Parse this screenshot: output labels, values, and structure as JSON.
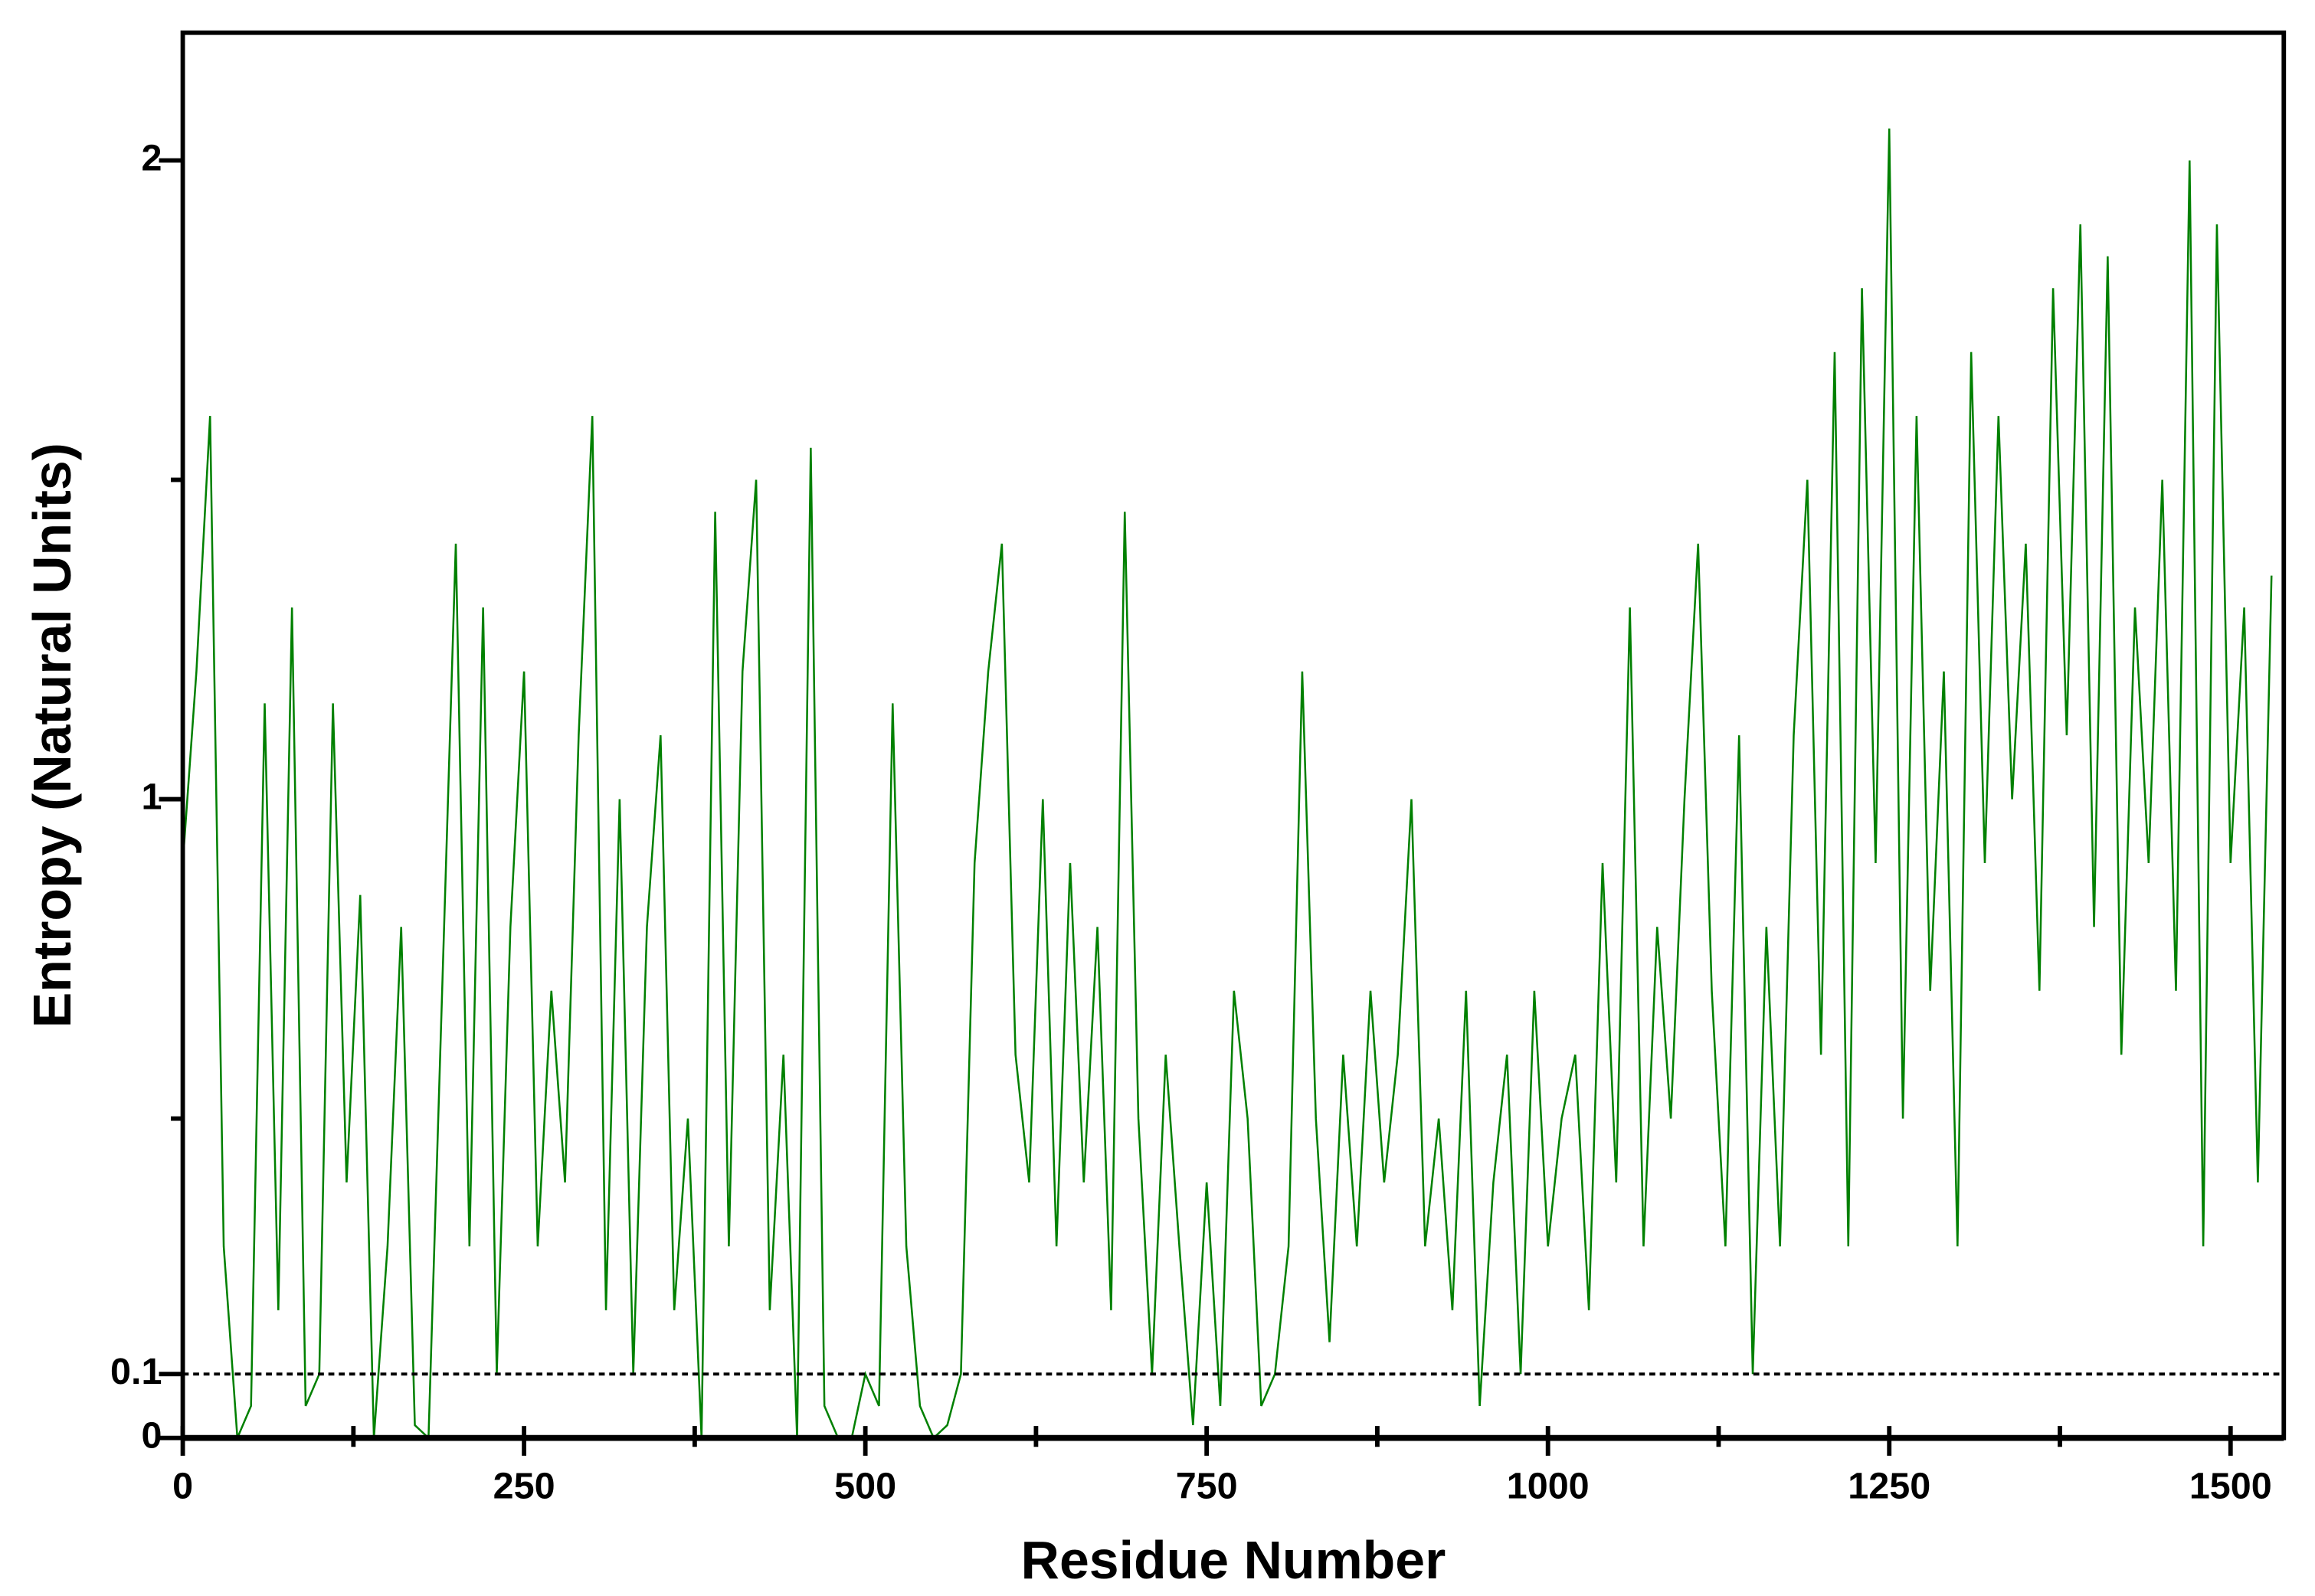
{
  "chart_data": {
    "type": "line",
    "xlabel": "Residue Number",
    "ylabel": "Entropy (Natural Units)",
    "xlim": [
      0,
      1539
    ],
    "ylim": [
      0,
      2.2
    ],
    "xticks": [
      0,
      250,
      500,
      750,
      1000,
      1250,
      1500
    ],
    "xminor_ticks": [
      125,
      375,
      625,
      875,
      1125,
      1375
    ],
    "yticks": [
      0,
      0.1,
      1,
      2
    ],
    "yminor_ticks": [
      0.5,
      1.5
    ],
    "threshold": 0.1,
    "grid": false,
    "x": [
      0,
      10,
      20,
      30,
      40,
      50,
      60,
      70,
      80,
      90,
      100,
      110,
      120,
      130,
      140,
      150,
      160,
      170,
      180,
      190,
      200,
      210,
      220,
      230,
      240,
      250,
      260,
      270,
      280,
      290,
      300,
      310,
      320,
      330,
      340,
      350,
      360,
      370,
      380,
      390,
      400,
      410,
      420,
      430,
      440,
      450,
      460,
      470,
      480,
      490,
      500,
      510,
      520,
      530,
      540,
      550,
      560,
      570,
      580,
      590,
      600,
      610,
      620,
      630,
      640,
      650,
      660,
      670,
      680,
      690,
      700,
      710,
      720,
      730,
      740,
      750,
      760,
      770,
      780,
      790,
      800,
      810,
      820,
      830,
      840,
      850,
      860,
      870,
      880,
      890,
      900,
      910,
      920,
      930,
      940,
      950,
      960,
      970,
      980,
      990,
      1000,
      1010,
      1020,
      1030,
      1040,
      1050,
      1060,
      1070,
      1080,
      1090,
      1100,
      1110,
      1120,
      1130,
      1140,
      1150,
      1160,
      1170,
      1180,
      1190,
      1200,
      1210,
      1220,
      1230,
      1240,
      1250,
      1260,
      1270,
      1280,
      1290,
      1300,
      1310,
      1320,
      1330,
      1340,
      1350,
      1360,
      1370,
      1380,
      1390,
      1400,
      1410,
      1420,
      1430,
      1440,
      1450,
      1460,
      1470,
      1480,
      1490,
      1500,
      1510,
      1520,
      1530
    ],
    "series": [
      {
        "name": "Entropy",
        "color": "#008000",
        "values": [
          0.9,
          1.2,
          1.6,
          0.3,
          0,
          0.05,
          1.15,
          0.2,
          1.3,
          0.05,
          0.1,
          1.15,
          0.4,
          0.85,
          0,
          0.3,
          0.8,
          0.02,
          0,
          0.7,
          1.4,
          0.3,
          1.3,
          0.1,
          0.8,
          1.2,
          0.3,
          0.7,
          0.4,
          1.1,
          1.6,
          0.2,
          1.0,
          0.1,
          0.8,
          1.1,
          0.2,
          0.5,
          0,
          1.45,
          0.3,
          1.2,
          1.5,
          0.2,
          0.6,
          0,
          1.55,
          0.05,
          0,
          0,
          0.1,
          0.05,
          1.15,
          0.3,
          0.05,
          0,
          0.02,
          0.1,
          0.9,
          1.2,
          1.4,
          0.6,
          0.4,
          1.0,
          0.3,
          0.9,
          0.4,
          0.8,
          0.2,
          1.45,
          0.5,
          0.1,
          0.6,
          0.3,
          0.02,
          0.4,
          0.05,
          0.7,
          0.5,
          0.05,
          0.1,
          0.3,
          1.2,
          0.5,
          0.15,
          0.6,
          0.3,
          0.7,
          0.4,
          0.6,
          1.0,
          0.3,
          0.5,
          0.2,
          0.7,
          0.05,
          0.4,
          0.6,
          0.1,
          0.7,
          0.3,
          0.5,
          0.6,
          0.2,
          0.9,
          0.4,
          1.3,
          0.3,
          0.8,
          0.5,
          1.0,
          1.4,
          0.7,
          0.3,
          1.1,
          0.1,
          0.8,
          0.3,
          1.1,
          1.5,
          0.6,
          1.7,
          0.3,
          1.8,
          0.9,
          2.05,
          0.5,
          1.6,
          0.7,
          1.2,
          0.3,
          1.7,
          0.9,
          1.6,
          1.0,
          1.4,
          0.7,
          1.8,
          1.1,
          1.9,
          0.8,
          1.85,
          0.6,
          1.3,
          0.9,
          1.5,
          0.7,
          2.0,
          0.3,
          1.9,
          0.9,
          1.3,
          0.4,
          1.35
        ]
      }
    ]
  }
}
